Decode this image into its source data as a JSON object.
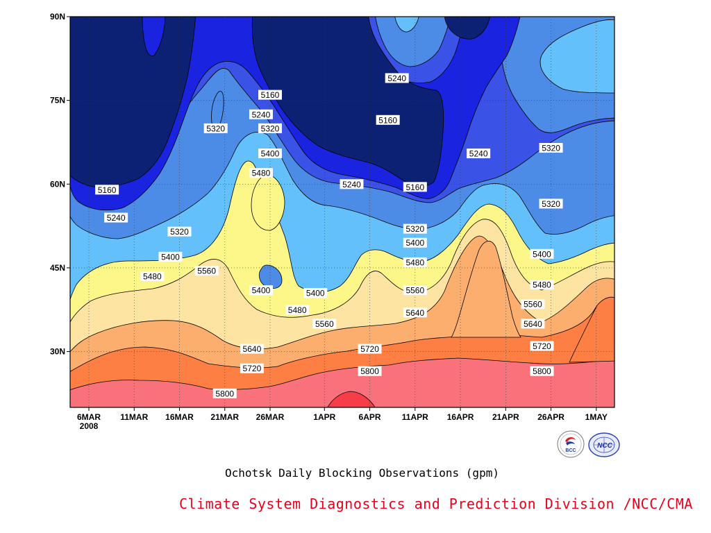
{
  "chart_data": {
    "type": "heatmap",
    "title": "Ochotsk Daily Blocking Observations (gpm)",
    "x_tick_labels": [
      "6MAR",
      "11MAR",
      "16MAR",
      "21MAR",
      "26MAR",
      "1APR",
      "6APR",
      "11APR",
      "16APR",
      "21APR",
      "26APR",
      "1MAY"
    ],
    "x_year_label": "2008",
    "y_tick_labels": [
      "30N",
      "45N",
      "60N",
      "75N",
      "90N"
    ],
    "y_ticks_deg": [
      30,
      45,
      60,
      75,
      90
    ],
    "ylim": [
      20,
      90
    ],
    "contour_levels": [
      5160,
      5240,
      5320,
      5400,
      5480,
      5560,
      5640,
      5720,
      5800,
      5880
    ],
    "contour_labels": [
      {
        "text": "5160",
        "date": "8MAR",
        "lat": 59
      },
      {
        "text": "5240",
        "date": "9MAR",
        "lat": 54
      },
      {
        "text": "5320",
        "date": "16MAR",
        "lat": 51.5
      },
      {
        "text": "5400",
        "date": "15MAR",
        "lat": 47
      },
      {
        "text": "5480",
        "date": "13MAR",
        "lat": 43.5
      },
      {
        "text": "5560",
        "date": "19MAR",
        "lat": 44.5
      },
      {
        "text": "5320",
        "date": "20MAR",
        "lat": 70
      },
      {
        "text": "5160",
        "date": "26MAR",
        "lat": 76
      },
      {
        "text": "5240",
        "date": "25MAR",
        "lat": 72.5
      },
      {
        "text": "5320",
        "date": "26MAR",
        "lat": 70
      },
      {
        "text": "5400",
        "date": "26MAR",
        "lat": 65.5
      },
      {
        "text": "5480",
        "date": "25MAR",
        "lat": 62
      },
      {
        "text": "5400",
        "date": "25MAR",
        "lat": 41
      },
      {
        "text": "5480",
        "date": "29MAR",
        "lat": 37.5
      },
      {
        "text": "5400",
        "date": "31MAR",
        "lat": 40.5
      },
      {
        "text": "5560",
        "date": "1APR",
        "lat": 35
      },
      {
        "text": "5640",
        "date": "24MAR",
        "lat": 30.5
      },
      {
        "text": "5720",
        "date": "24MAR",
        "lat": 27
      },
      {
        "text": "5800",
        "date": "21MAR",
        "lat": 22.5
      },
      {
        "text": "5240",
        "date": "4APR",
        "lat": 60
      },
      {
        "text": "5240",
        "date": "9APR",
        "lat": 79
      },
      {
        "text": "5160",
        "date": "8APR",
        "lat": 71.5
      },
      {
        "text": "5160",
        "date": "11APR",
        "lat": 59.5
      },
      {
        "text": "5320",
        "date": "11APR",
        "lat": 52
      },
      {
        "text": "5400",
        "date": "11APR",
        "lat": 49.5
      },
      {
        "text": "5480",
        "date": "11APR",
        "lat": 46
      },
      {
        "text": "5560",
        "date": "11APR",
        "lat": 41
      },
      {
        "text": "5640",
        "date": "11APR",
        "lat": 37
      },
      {
        "text": "5720",
        "date": "6APR",
        "lat": 30.5
      },
      {
        "text": "5800",
        "date": "6APR",
        "lat": 26.5
      },
      {
        "text": "5240",
        "date": "18APR",
        "lat": 65.5
      },
      {
        "text": "5320",
        "date": "26APR",
        "lat": 66.5
      },
      {
        "text": "5320",
        "date": "26APR",
        "lat": 56.5
      },
      {
        "text": "5400",
        "date": "25APR",
        "lat": 47.5
      },
      {
        "text": "5480",
        "date": "25APR",
        "lat": 42
      },
      {
        "text": "5560",
        "date": "24APR",
        "lat": 38.5
      },
      {
        "text": "5640",
        "date": "24APR",
        "lat": 35
      },
      {
        "text": "5720",
        "date": "25APR",
        "lat": 31
      },
      {
        "text": "5800",
        "date": "25APR",
        "lat": 26.5
      }
    ]
  },
  "footer": {
    "title": "Ochotsk Daily Blocking Observations (gpm)",
    "credit": "Climate System Diagnostics and Prediction Division /NCC/CMA",
    "logo_left_text": "BCC",
    "logo_right_text": "NCC"
  },
  "colors": {
    "lev_5160_below": "#0c2173",
    "lev_5160_5240": "#1a24e0",
    "lev_5240_5320": "#3b52e6",
    "lev_5320_5400": "#4d8ce6",
    "lev_5400_5480": "#63c0fa",
    "lev_5480_5560": "#fdf78a",
    "lev_5560_5640": "#fde4a2",
    "lev_5640_5720": "#fbae6e",
    "lev_5720_5800": "#fd7f44",
    "lev_5800_5880": "#f9717a",
    "lev_5880_above": "#f73e48",
    "credit": "#e8001c"
  }
}
